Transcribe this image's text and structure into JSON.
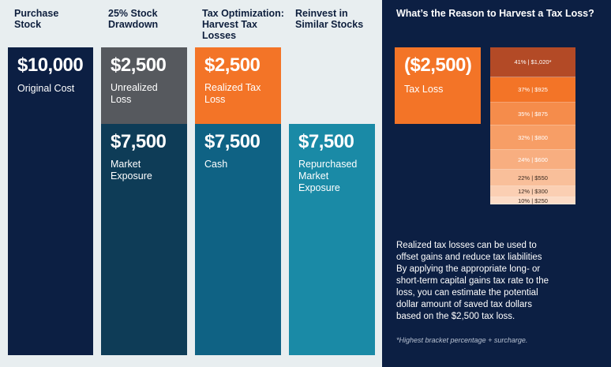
{
  "columns": [
    {
      "header": "Purchase\nStock"
    },
    {
      "header": "25% Stock\nDrawdown"
    },
    {
      "header": "Tax Optimization:\nHarvest Tax\nLosses"
    },
    {
      "header": "Reinvest in\nSimilar Stocks"
    }
  ],
  "blocks": {
    "original_cost": {
      "value": "$10,000",
      "label": "Original Cost",
      "color": "#0c1f43"
    },
    "unrealized_loss": {
      "value": "$2,500",
      "label": "Unrealized\nLoss",
      "color": "#56595e"
    },
    "market_exposure": {
      "value": "$7,500",
      "label": "Market\nExposure",
      "color": "#0e3c57"
    },
    "realized_loss": {
      "value": "$2,500",
      "label": "Realized Tax\nLoss",
      "color": "#f37427"
    },
    "cash": {
      "value": "$7,500",
      "label": "Cash",
      "color": "#0f6284"
    },
    "repurchased": {
      "value": "$7,500",
      "label": "Repurchased\nMarket\nExposure",
      "color": "#1a8aa6"
    }
  },
  "panel": {
    "title": "What’s the Reason to Harvest a Tax Loss?",
    "tax_loss": {
      "value": "($2,500)",
      "label": "Tax Loss"
    },
    "rates": [
      {
        "label": "41%  |  $1,020*",
        "color": "#b34a26"
      },
      {
        "label": "37%  |  $925",
        "color": "#f37427"
      },
      {
        "label": "35%  |  $875",
        "color": "#f58c4b"
      },
      {
        "label": "32%  |  $800",
        "color": "#f79e66"
      },
      {
        "label": "24%  |  $600",
        "color": "#f8ae80"
      },
      {
        "label": "22%  |  $550",
        "color": "#f9bf9a"
      },
      {
        "label": "12%  |  $300",
        "color": "#fbcfb3"
      },
      {
        "label": "10%  |  $250",
        "color": "#fcdcc7"
      }
    ],
    "description": "Realized tax losses can be used to\noffset gains and reduce tax liabilities\nBy applying the appropriate long- or\nshort-term capital gains tax rate to the\nloss, you can estimate the potential\ndollar amount  of saved tax dollars\nbased on the $2,500 tax loss.",
    "footnote": "*Highest bracket percentage + surcharge."
  }
}
